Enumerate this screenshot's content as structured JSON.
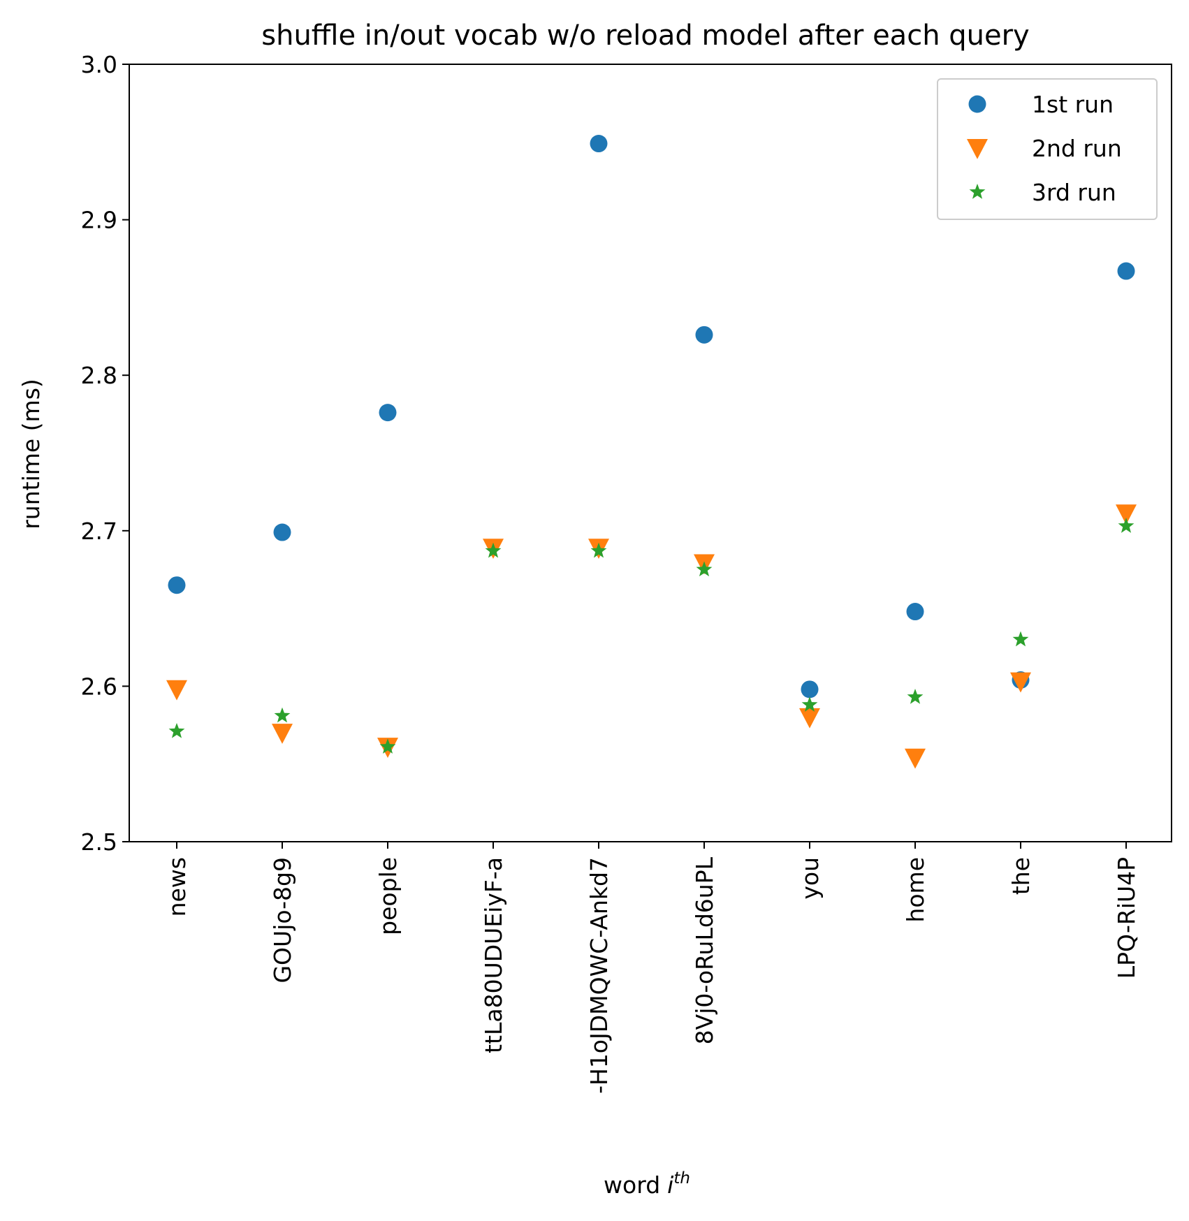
{
  "chart_data": {
    "type": "scatter",
    "title": "shuffle in/out vocab w/o reload model after each query",
    "xlabel": "word",
    "xlabel_superscript_base": "i",
    "xlabel_superscript": "th",
    "ylabel": "runtime (ms)",
    "ylim": [
      2.5,
      3.0
    ],
    "yticks": [
      "2.5",
      "2.6",
      "2.7",
      "2.8",
      "2.9",
      "3.0"
    ],
    "categories": [
      "news",
      "GOUjo-8g9",
      "people",
      "ttLa80UDUEiyF-a",
      "-H1oJDMQWC-Ankd7",
      "8Vj0-oRuLd6uPL",
      "you",
      "home",
      "the",
      "LPQ-RiU4P"
    ],
    "series": [
      {
        "name": "1st run",
        "marker": "circle",
        "color": "#1f77b4",
        "values": [
          2.665,
          2.699,
          2.776,
          null,
          2.949,
          2.826,
          2.598,
          2.648,
          2.604,
          2.867
        ]
      },
      {
        "name": "2nd run",
        "marker": "triangle-down",
        "color": "#ff7f0e",
        "values": [
          2.598,
          2.57,
          2.561,
          2.689,
          2.689,
          2.679,
          2.58,
          2.554,
          2.603,
          2.711
        ]
      },
      {
        "name": "3rd run",
        "marker": "star",
        "color": "#2ca02c",
        "values": [
          2.571,
          2.581,
          2.561,
          2.687,
          2.687,
          2.675,
          2.588,
          2.593,
          2.63,
          2.703
        ]
      }
    ],
    "grid": false,
    "legend": "top-right"
  }
}
